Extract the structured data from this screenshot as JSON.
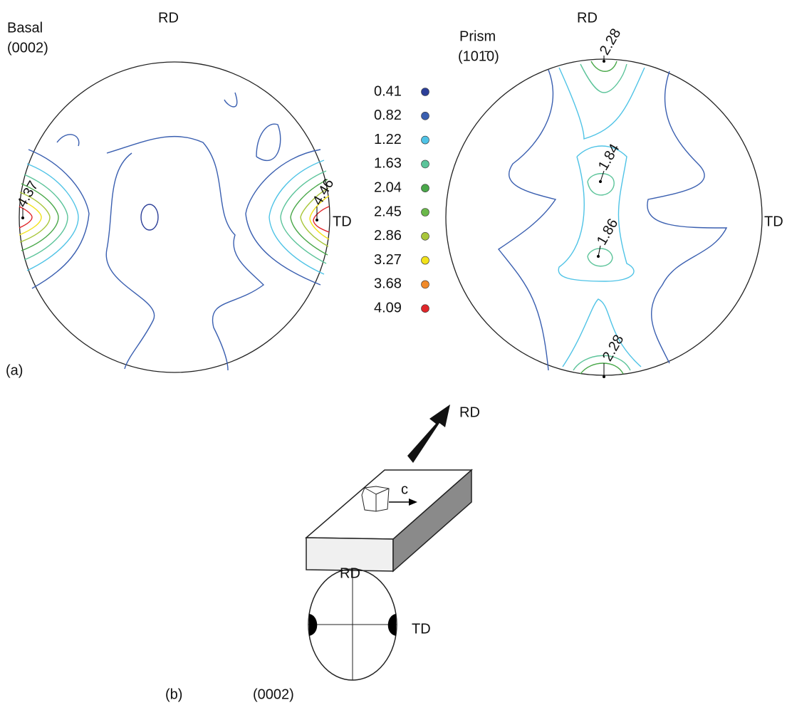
{
  "panel_a": {
    "label": "(a)",
    "basal": {
      "title": "Basal",
      "plane": "(0002)",
      "rd": "RD",
      "td": "TD",
      "peaks": [
        "4.37",
        "4.46"
      ]
    },
    "prism": {
      "title": "Prism",
      "plane": "(101̄0)",
      "rd": "RD",
      "td": "TD",
      "peaks": [
        "2.28",
        "1.84",
        "1.86",
        "2.28"
      ]
    },
    "legend": {
      "levels": [
        {
          "label": "0.41",
          "color": "#2c3f98"
        },
        {
          "label": "0.82",
          "color": "#3a5fb0"
        },
        {
          "label": "1.22",
          "color": "#4fc3e6"
        },
        {
          "label": "1.63",
          "color": "#5cc49a"
        },
        {
          "label": "2.04",
          "color": "#4aa84a"
        },
        {
          "label": "2.45",
          "color": "#6ab84a"
        },
        {
          "label": "2.86",
          "color": "#a8c63a"
        },
        {
          "label": "3.27",
          "color": "#f2e21a"
        },
        {
          "label": "3.68",
          "color": "#f08a2a"
        },
        {
          "label": "4.09",
          "color": "#e0262a"
        }
      ]
    }
  },
  "panel_b": {
    "label": "(b)",
    "rd": "RD",
    "c": "c",
    "pf_rd": "RD",
    "pf_td": "TD",
    "pf_plane": "(0002)"
  }
}
